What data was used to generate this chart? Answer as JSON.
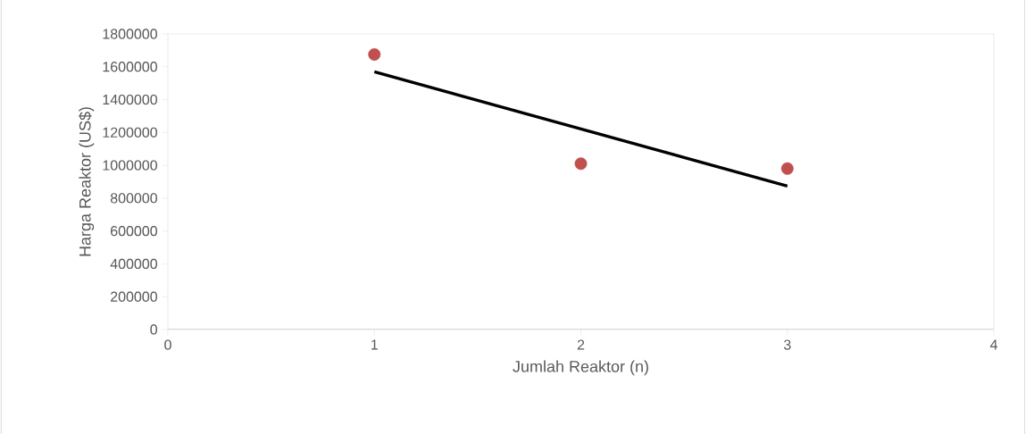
{
  "chart_data": {
    "type": "scatter",
    "xlabel": "Jumlah Reaktor (n)",
    "ylabel": "Harga Reaktor (US$)",
    "x": [
      1,
      2,
      3
    ],
    "series": [
      {
        "color": "#c0504d",
        "marker": "circle",
        "values": [
          1675000,
          1010000,
          980000
        ]
      },
      {
        "type": "line",
        "color": "#000000",
        "marker": "none",
        "line_style": "solid",
        "x": [
          1,
          3
        ],
        "values": [
          1569000,
          874000
        ]
      }
    ],
    "xlim": [
      0,
      4
    ],
    "ylim": [
      0,
      1800000
    ],
    "xticks": [
      0,
      1,
      2,
      3,
      4
    ],
    "yticks": [
      0,
      200000,
      400000,
      600000,
      800000,
      1000000,
      1200000,
      1400000,
      1600000,
      1800000
    ]
  }
}
